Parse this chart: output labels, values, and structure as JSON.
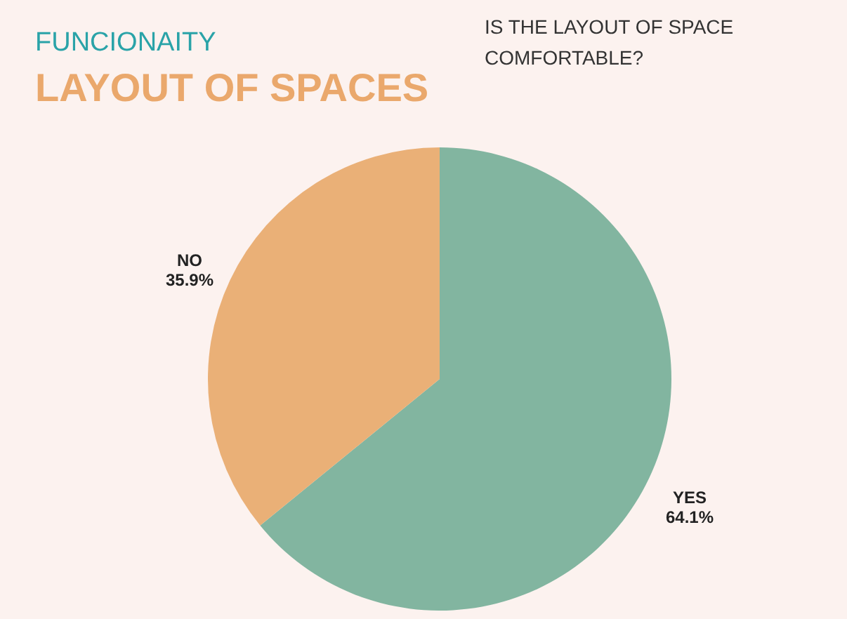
{
  "chart_data": {
    "type": "pie",
    "subtitle": "FUNCIONAITY",
    "title": "LAYOUT OF SPACES",
    "annotations": [
      "IS THE LAYOUT OF SPACE\nCOMFORTABLE?"
    ],
    "categories": [
      "YES",
      "NO"
    ],
    "values": [
      64.1,
      35.9
    ],
    "value_labels": [
      "64.1%",
      "35.9%"
    ],
    "colors": [
      "#82b5a0",
      "#eab077"
    ]
  }
}
